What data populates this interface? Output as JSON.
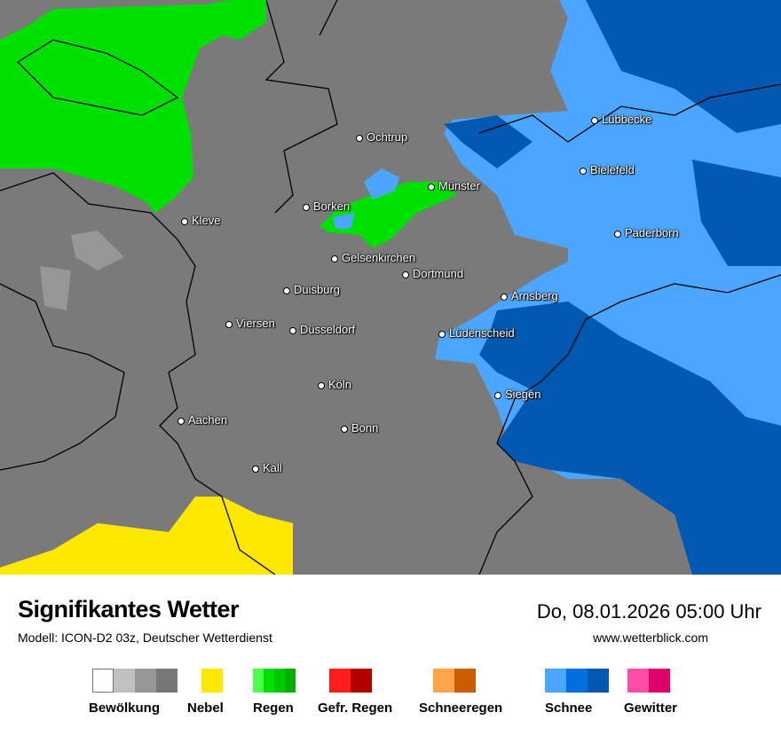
{
  "map": {
    "background_color": "#7a7a7a",
    "cities": [
      {
        "name": "Lübbecke"
      },
      {
        "name": "Ochtrup"
      },
      {
        "name": "Bielefeld"
      },
      {
        "name": "Münster"
      },
      {
        "name": "Borken"
      },
      {
        "name": "Kleve"
      },
      {
        "name": "Paderborn"
      },
      {
        "name": "Gelsenkirchen"
      },
      {
        "name": "Dortmund"
      },
      {
        "name": "Duisburg"
      },
      {
        "name": "Arnsberg"
      },
      {
        "name": "Viersen"
      },
      {
        "name": "Düsseldorf"
      },
      {
        "name": "Lüdenscheid"
      },
      {
        "name": "Köln"
      },
      {
        "name": "Siegen"
      },
      {
        "name": "Aachen"
      },
      {
        "name": "Bonn"
      },
      {
        "name": "Kall"
      }
    ]
  },
  "header": {
    "title": "Signifikantes Wetter",
    "model": "Modell: ICON-D2 03z, Deutscher Wetterdienst",
    "datetime": "Do, 08.01.2026 05:00 Uhr",
    "website": "www.wetterblick.com"
  },
  "legend": [
    {
      "label": "Bewölkung",
      "colors": [
        "#ffffff",
        "#c0c0c0",
        "#979797",
        "#777777"
      ]
    },
    {
      "label": "Nebel",
      "colors": [
        "#ffe800"
      ]
    },
    {
      "label": "Regen",
      "colors": [
        "#4cff4c",
        "#00e000",
        "#00c800",
        "#00b000"
      ]
    },
    {
      "label": "Gefr. Regen",
      "colors": [
        "#ff1c1c",
        "#b00000"
      ]
    },
    {
      "label": "Schneeregen",
      "colors": [
        "#ffa64c",
        "#cc5c00"
      ]
    },
    {
      "label": "Schnee",
      "colors": [
        "#4ca6ff",
        "#0070e0",
        "#0058b0"
      ]
    },
    {
      "label": "Gewitter",
      "colors": [
        "#ff4ca6",
        "#e0006c"
      ]
    }
  ]
}
